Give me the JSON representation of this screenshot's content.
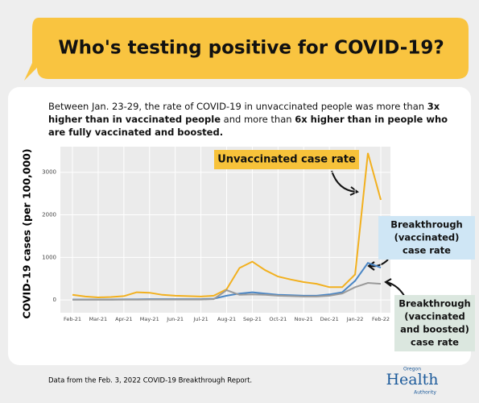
{
  "chart_data": {
    "type": "line",
    "title": "Who's testing positive for COVID-19?",
    "subtitle": [
      "Between Jan. 23-29, the rate of COVID-19 in unvaccinated people was more than ",
      "3x higher than in vaccinated people",
      " and more than ",
      "6x higher than in people who are fully vaccinated and boosted."
    ],
    "y_label": "COVID-19 cases (per 100,000)",
    "categories": [
      "Feb-21",
      null,
      "Mar-21",
      null,
      "Apr-21",
      null,
      "May-21",
      null,
      "Jun-21",
      null,
      "Jul-21",
      null,
      "Aug-21",
      null,
      "Sep-21",
      null,
      "Oct-21",
      null,
      "Nov-21",
      null,
      "Dec-21",
      null,
      "Jan-22",
      null,
      "Feb-22"
    ],
    "ylim": [
      -300,
      3600
    ],
    "yticks": [
      0,
      1000,
      2000,
      3000
    ],
    "grid": true,
    "series": [
      {
        "label_lines": [
          "Unvaccinated case rate"
        ],
        "color": "#f2b01e",
        "box_color": "#f7c23a",
        "values": [
          120,
          80,
          60,
          70,
          90,
          180,
          170,
          120,
          100,
          90,
          80,
          100,
          250,
          750,
          900,
          700,
          550,
          480,
          420,
          380,
          300,
          300,
          600,
          3450,
          2350
        ]
      },
      {
        "label_lines": [
          "Breakthrough",
          "(vaccinated)",
          "case rate"
        ],
        "color": "#4a86c5",
        "box_color": "#cfe6f5",
        "values": [
          10,
          10,
          10,
          10,
          15,
          15,
          20,
          20,
          20,
          20,
          20,
          30,
          100,
          150,
          180,
          150,
          120,
          110,
          100,
          100,
          130,
          180,
          450,
          870,
          760
        ]
      },
      {
        "label_lines": [
          "Breakthrough",
          "(vaccinated",
          "and boosted)",
          "case rate"
        ],
        "color": "#9a9a9a",
        "box_color": "#dbe7df",
        "values": [
          5,
          5,
          5,
          5,
          8,
          8,
          10,
          10,
          10,
          10,
          10,
          20,
          230,
          120,
          130,
          120,
          100,
          90,
          80,
          80,
          100,
          150,
          300,
          400,
          380
        ]
      }
    ]
  },
  "footer": {
    "source": "Data from the Feb. 3, 2022 COVID-19 Breakthrough Report.",
    "logo": [
      "Oregon",
      "Health",
      "Authority"
    ]
  }
}
